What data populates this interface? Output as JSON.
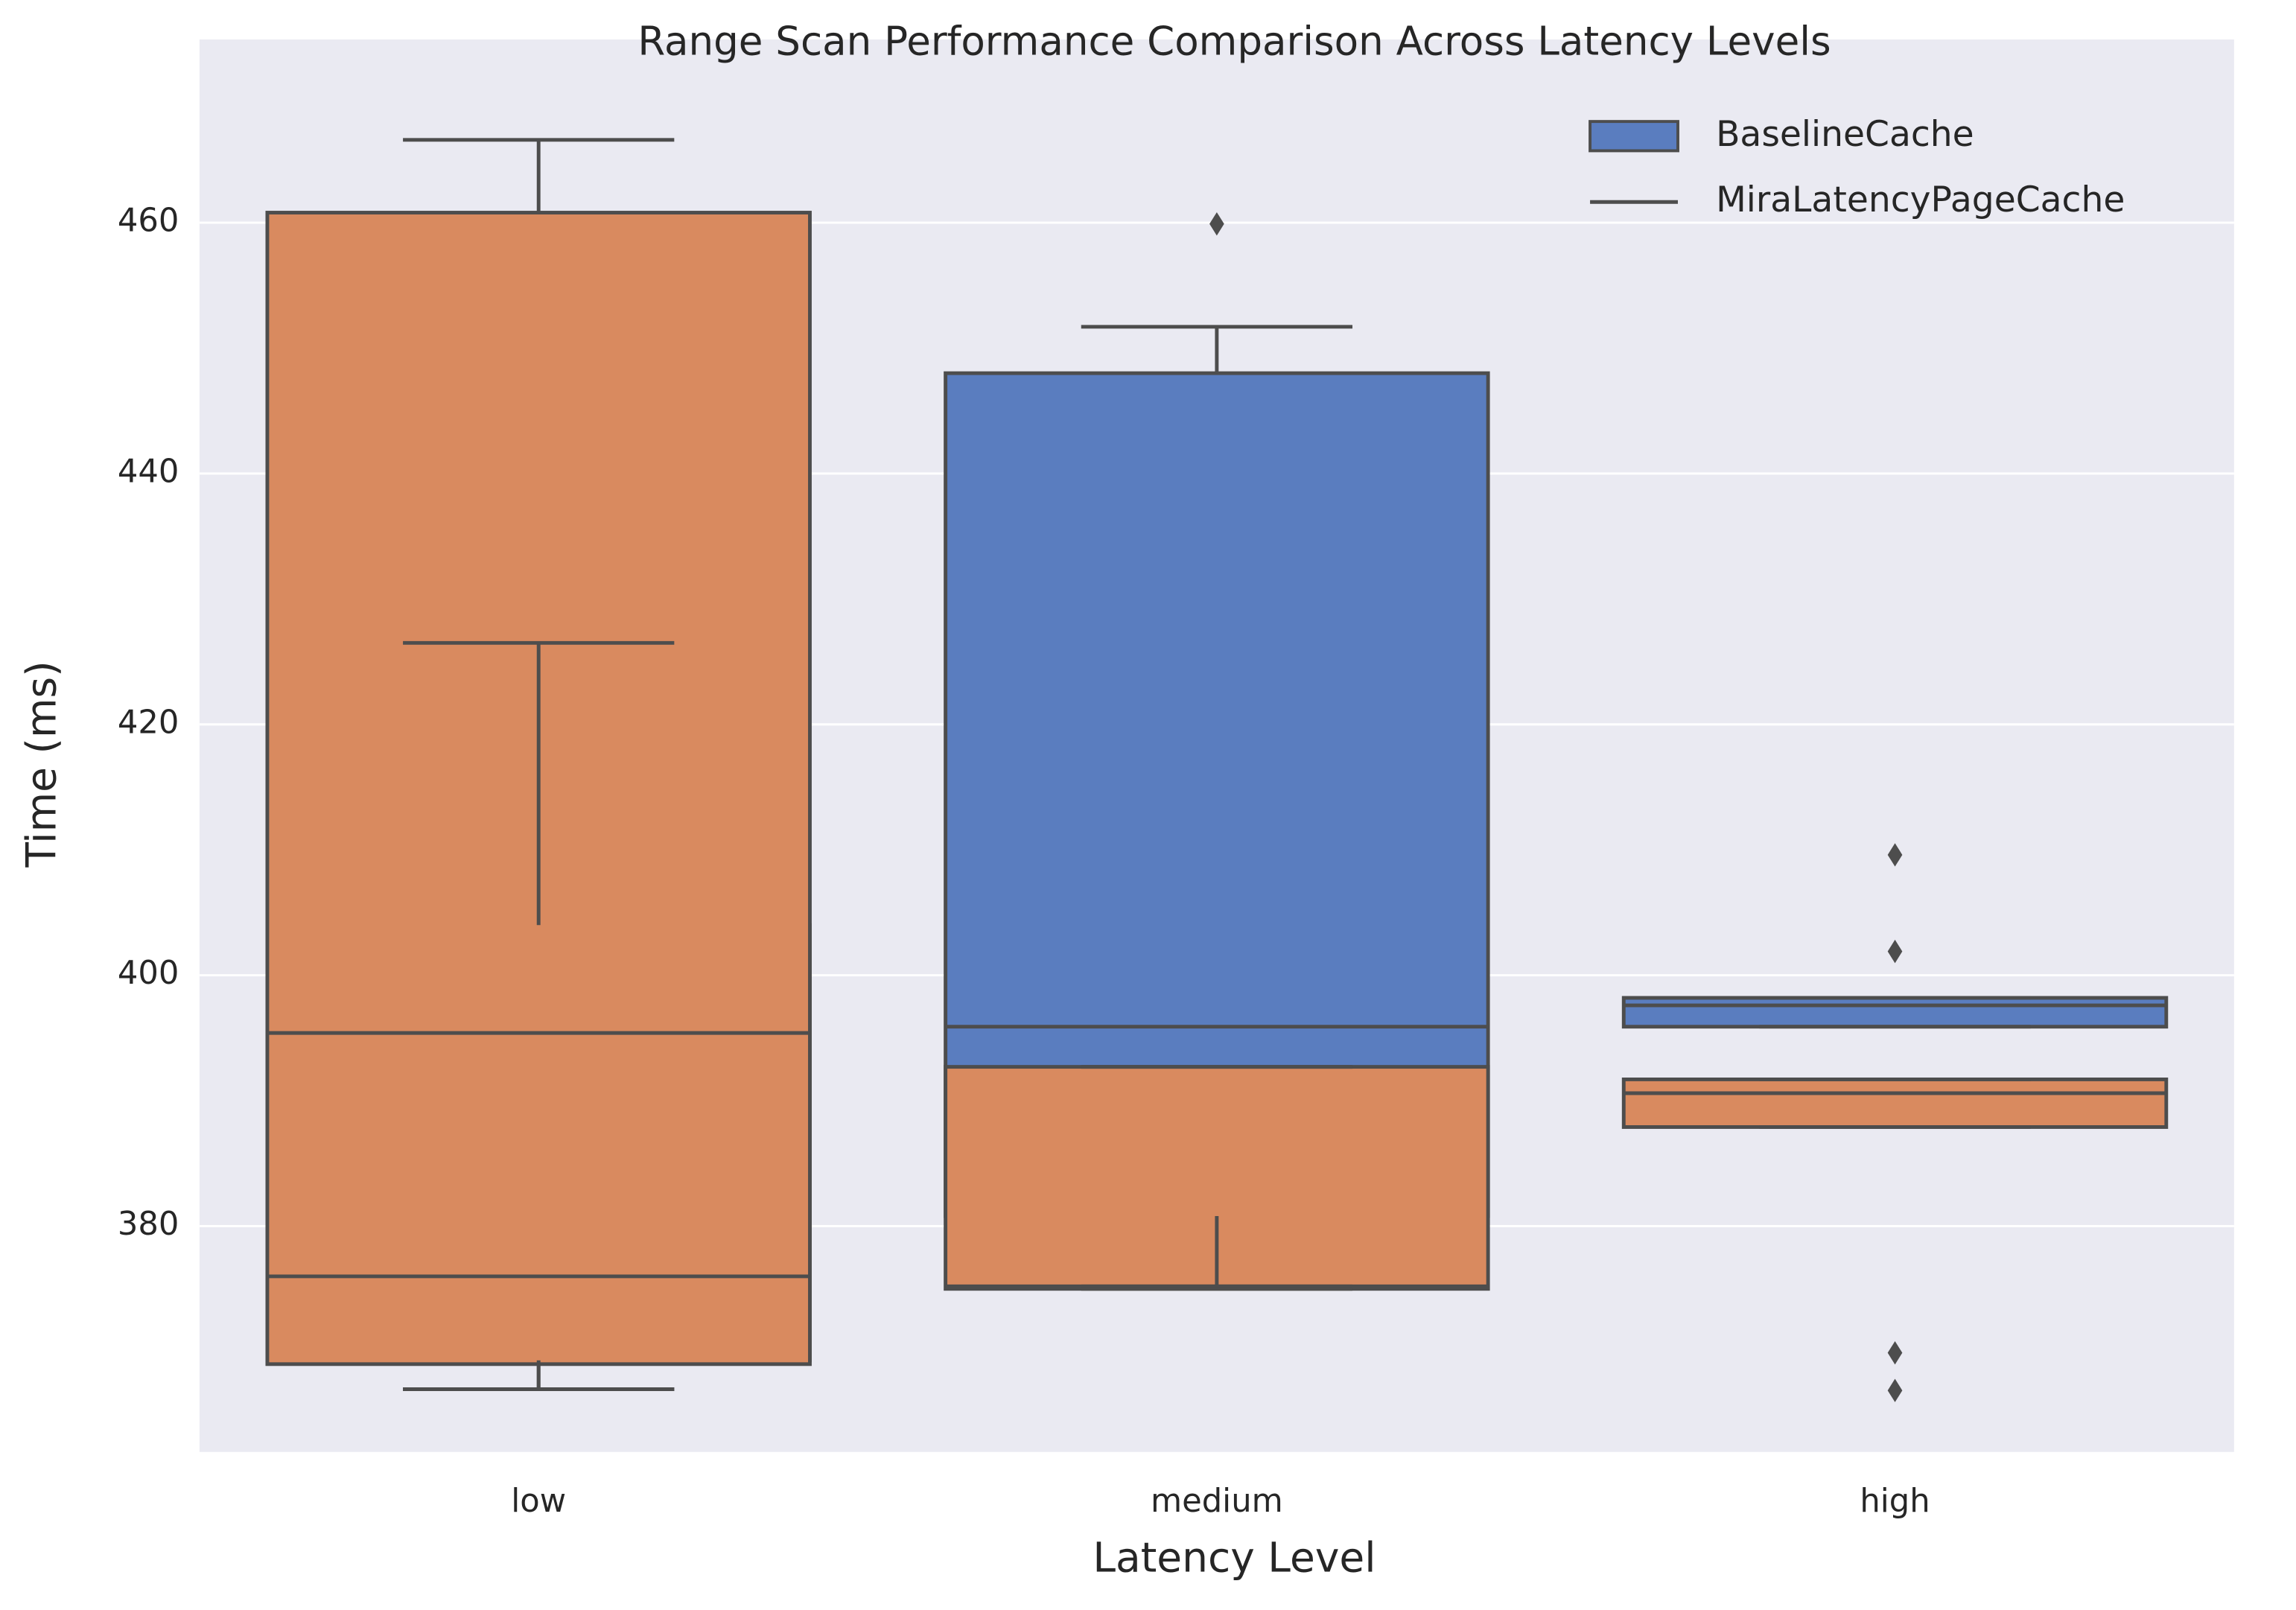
{
  "chart_data": {
    "type": "box",
    "title": "Range Scan Performance Comparison Across Latency Levels",
    "xlabel": "Latency Level",
    "ylabel": "Time (ms)",
    "categories": [
      "low",
      "medium",
      "high"
    ],
    "ylim": [
      362,
      474.6
    ],
    "yticks": [
      380,
      400,
      420,
      440,
      460
    ],
    "grid": true,
    "legend": "upper right",
    "legend_handles": [
      "patch",
      "line"
    ],
    "series": [
      {
        "name": "BaselineCache",
        "color": "#5a7dbf",
        "boxes": [
          {
            "whislo": 367,
            "q1": 369.3,
            "med": 376,
            "q3": 404,
            "whishi": 426.5,
            "fliers": []
          },
          {
            "whislo": 375.2,
            "q1": 380.8,
            "med": 395.9,
            "q3": 448,
            "whishi": 451.7,
            "fliers": [
              459.9
            ]
          },
          {
            "whislo": 395.9,
            "q1": 395.9,
            "med": 397.6,
            "q3": 398.2,
            "whishi": 398.2,
            "fliers": [
              409.6,
              401.9
            ]
          }
        ]
      },
      {
        "name": "MiraLatencyPageCache",
        "color": "#d98a5f",
        "boxes": [
          {
            "whislo": 367,
            "q1": 369,
            "med": 395.4,
            "q3": 460.8,
            "whishi": 466.6,
            "fliers": []
          },
          {
            "whislo": 375,
            "q1": 375,
            "med": 375.2,
            "q3": 392.7,
            "whishi": 392.7,
            "fliers": []
          },
          {
            "whislo": 387.9,
            "q1": 387.9,
            "med": 390.6,
            "q3": 391.7,
            "whishi": 391.7,
            "fliers": [
              369.9,
              366.9
            ]
          }
        ]
      }
    ]
  }
}
